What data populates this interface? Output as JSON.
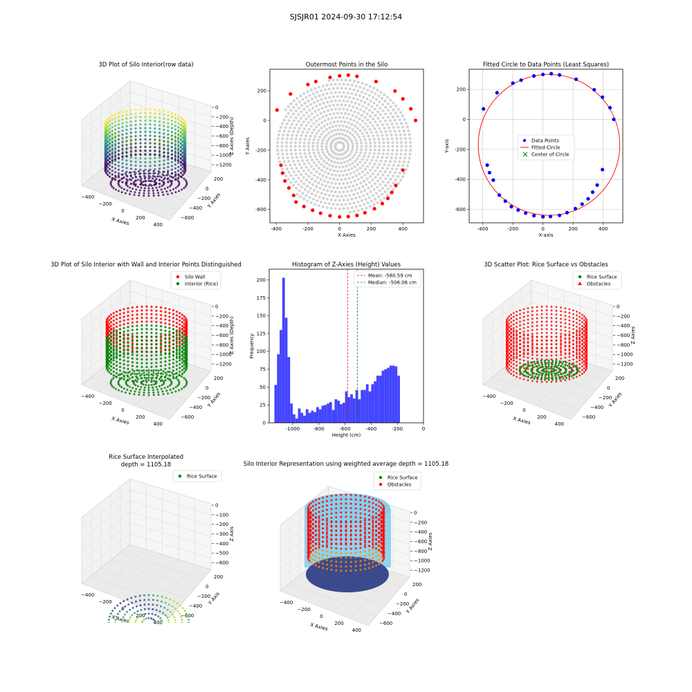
{
  "figure": {
    "suptitle": "SJSJR01 2024-09-30 17:12:54"
  },
  "colors": {
    "red": "#ff0000",
    "green": "#008000",
    "blue": "#0000ff",
    "grey": "#d3d3d3",
    "hist": "#4444ff",
    "sky": "#87ceeb",
    "orange": "#ff8c00"
  },
  "chart_data": [
    {
      "id": "p1",
      "type": "scatter3d",
      "title": "3D Plot of Silo Interior(row data)",
      "xlabel": "X Axies",
      "ylabel": "Y Axies",
      "zlabel": "Z Axies (Depth)",
      "xticks": [
        "−400",
        "−200",
        "0",
        "200",
        "400"
      ],
      "yticks": [
        "200",
        "0",
        "−200",
        "−400",
        "−600"
      ],
      "zticks": [
        "0",
        "−200",
        "−400",
        "−600",
        "−800",
        "−1000",
        "−1200"
      ],
      "colormap": "viridis"
    },
    {
      "id": "p2",
      "type": "scatter",
      "title": "Outermost Points in the Silo",
      "xlabel": "X Axies",
      "ylabel": "Y Axies",
      "xlim": [
        -440,
        530
      ],
      "ylim": [
        -690,
        345
      ],
      "xticks": [
        -400,
        -200,
        0,
        200,
        400
      ],
      "yticks": [
        -600,
        -400,
        -200,
        0,
        200
      ],
      "center": [
        0,
        -175
      ],
      "outer_points": [
        [
          -395,
          70
        ],
        [
          -310,
          178
        ],
        [
          -200,
          242
        ],
        [
          -150,
          262
        ],
        [
          -60,
          290
        ],
        [
          0,
          300
        ],
        [
          55,
          305
        ],
        [
          110,
          297
        ],
        [
          230,
          262
        ],
        [
          350,
          198
        ],
        [
          400,
          145
        ],
        [
          450,
          78
        ],
        [
          480,
          0
        ],
        [
          400,
          -335
        ],
        [
          355,
          -438
        ],
        [
          330,
          -485
        ],
        [
          305,
          -525
        ],
        [
          270,
          -560
        ],
        [
          220,
          -595
        ],
        [
          160,
          -622
        ],
        [
          110,
          -640
        ],
        [
          55,
          -648
        ],
        [
          0,
          -650
        ],
        [
          -60,
          -642
        ],
        [
          -120,
          -625
        ],
        [
          -170,
          -605
        ],
        [
          -225,
          -580
        ],
        [
          -275,
          -550
        ],
        [
          -290,
          -505
        ],
        [
          -320,
          -455
        ],
        [
          -345,
          -408
        ],
        [
          -360,
          -355
        ],
        [
          -370,
          -302
        ]
      ]
    },
    {
      "id": "p3",
      "type": "scatter",
      "title": "Fitted Circle to Data Points (Least Squares)",
      "xlabel": "X-axis",
      "ylabel": "Y-axis",
      "xlim": [
        -490,
        530
      ],
      "ylim": [
        -690,
        335
      ],
      "xticks": [
        -400,
        -200,
        0,
        200,
        400
      ],
      "yticks": [
        -600,
        -400,
        -200,
        0,
        200
      ],
      "grid": true,
      "legend": [
        "Data Points",
        "Fitted Circle",
        "Center of Circle"
      ],
      "circle": {
        "cx": 40,
        "cy": -170,
        "r": 470
      },
      "points": [
        [
          -395,
          70
        ],
        [
          -305,
          178
        ],
        [
          -200,
          242
        ],
        [
          -145,
          262
        ],
        [
          -60,
          290
        ],
        [
          0,
          300
        ],
        [
          55,
          305
        ],
        [
          110,
          297
        ],
        [
          220,
          268
        ],
        [
          340,
          198
        ],
        [
          395,
          148
        ],
        [
          445,
          78
        ],
        [
          470,
          0
        ],
        [
          395,
          -335
        ],
        [
          360,
          -438
        ],
        [
          330,
          -485
        ],
        [
          300,
          -530
        ],
        [
          260,
          -565
        ],
        [
          215,
          -595
        ],
        [
          160,
          -622
        ],
        [
          110,
          -640
        ],
        [
          50,
          -648
        ],
        [
          0,
          -650
        ],
        [
          -60,
          -642
        ],
        [
          -115,
          -625
        ],
        [
          -165,
          -605
        ],
        [
          -210,
          -582
        ],
        [
          -250,
          -545
        ],
        [
          -290,
          -505
        ],
        [
          -330,
          -405
        ],
        [
          -355,
          -355
        ],
        [
          -370,
          -305
        ]
      ]
    },
    {
      "id": "p4",
      "type": "scatter3d",
      "title": "3D Plot of Silo Interior with Wall and Interior Points Distinguished",
      "xlabel": "X Axies",
      "ylabel": "Y Axies",
      "zlabel": "Z Axies (Depth)",
      "legend": [
        "Silo Wall",
        "Interior (Rice)"
      ],
      "xticks": [
        "−400",
        "−200",
        "0",
        "200",
        "400"
      ],
      "yticks": [
        "200",
        "0",
        "−200",
        "−400",
        "−600"
      ],
      "zticks": [
        "0",
        "−200",
        "−400",
        "−600",
        "−800",
        "−1000",
        "−1200"
      ]
    },
    {
      "id": "p5",
      "type": "bar",
      "title": "Histogram of Z-Axies (Height) Values",
      "xlabel": "Height (cm)",
      "ylabel": "Frequency",
      "xlim": [
        -1180,
        0
      ],
      "ylim": [
        0,
        215
      ],
      "xticks": [
        -1000,
        -800,
        -600,
        -400,
        -200,
        0
      ],
      "yticks": [
        0,
        25,
        50,
        75,
        100,
        125,
        150,
        175,
        200
      ],
      "bin_start": -1140,
      "bin_width": 20,
      "values": [
        53,
        96,
        130,
        203,
        147,
        92,
        27,
        12,
        6,
        20,
        14,
        10,
        19,
        14,
        17,
        15,
        22,
        19,
        24,
        25,
        27,
        29,
        18,
        33,
        31,
        26,
        28,
        44,
        36,
        40,
        34,
        46,
        33,
        46,
        46,
        54,
        44,
        54,
        58,
        66,
        66,
        73,
        75,
        77,
        80,
        80,
        79,
        66
      ],
      "mean": {
        "label": "Mean: -580.59 cm",
        "value": -580.59
      },
      "median": {
        "label": "Median: -506.06 cm",
        "value": -506.06
      }
    },
    {
      "id": "p6",
      "type": "scatter3d",
      "title": "3D Scatter Plot: Rice Surface vs Obstacles",
      "xlabel": "X Axies",
      "ylabel": "Y Axies",
      "zlabel": "Z Axies",
      "legend": [
        "Rice Surface",
        "Obstacles"
      ],
      "xticks": [
        "−400",
        "−200",
        "0",
        "200",
        "400"
      ],
      "yticks": [
        "200",
        "0",
        "−200",
        "−400",
        "−600"
      ],
      "zticks": [
        "0",
        "−200",
        "−400",
        "−600",
        "−800",
        "−1000",
        "−1200"
      ]
    },
    {
      "id": "p7",
      "type": "surface3d",
      "title": "Rice Surface Interpolated",
      "subtitle": "depth = 1105.18",
      "xlabel": "X Axies",
      "ylabel": "Y Axis",
      "zlabel": "Z Axis",
      "legend": [
        "Rice Surface"
      ],
      "xticks": [
        "−400",
        "−200",
        "0",
        "200",
        "400"
      ],
      "yticks": [
        "200",
        "0",
        "−200",
        "−400",
        "−600"
      ],
      "zticks": [
        "0",
        "−100",
        "−200",
        "−300",
        "−400",
        "−500",
        "−600"
      ]
    },
    {
      "id": "p8",
      "type": "scatter3d",
      "title": "Silo Interior Representation using weighted average depth = 1105.18",
      "xlabel": "X Axies",
      "ylabel": "Y Axies",
      "zlabel": "Z Axies",
      "legend": [
        "Rice Surface",
        "Obstacles"
      ],
      "xticks": [
        "−400",
        "−200",
        "0",
        "200",
        "400"
      ],
      "yticks": [
        "200",
        "0",
        "−200",
        "−400",
        "−600"
      ],
      "zticks": [
        "0",
        "−200",
        "−400",
        "−600",
        "−800",
        "−1000",
        "−1200"
      ]
    }
  ]
}
